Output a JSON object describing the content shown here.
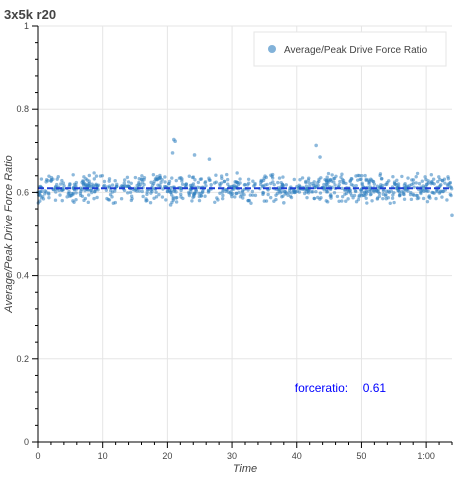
{
  "chart_data": {
    "type": "scatter",
    "title": "3x5k r20",
    "xlabel": "Time",
    "ylabel": "Average/Peak Drive Force Ratio",
    "xlim": [
      0,
      64
    ],
    "ylim": [
      0,
      1
    ],
    "x_ticks": [
      0,
      10,
      20,
      30,
      40,
      50,
      60
    ],
    "x_tick_labels": [
      "0",
      "10",
      "20",
      "30",
      "40",
      "50",
      "1:00"
    ],
    "y_ticks": [
      0,
      0.2,
      0.4,
      0.6,
      0.8,
      1
    ],
    "y_tick_labels": [
      "0",
      "0.2",
      "0.4",
      "0.6",
      "0.8",
      "1"
    ],
    "grid": true,
    "legend_position": "top-right",
    "colors": {
      "points": "#2f7fbf",
      "mean_line": "#1f3fd6",
      "annotation": "#0000ff"
    },
    "series": [
      {
        "name": "Average/Peak Drive Force Ratio",
        "mean": 0.61,
        "x_range": [
          0,
          64
        ],
        "point_count": 900,
        "y_spread": [
          0.575,
          0.645
        ],
        "outliers": [
          {
            "x": 0,
            "y": 0.6
          },
          {
            "x": 20.5,
            "y": 0.57
          },
          {
            "x": 21.0,
            "y": 0.727
          },
          {
            "x": 21.2,
            "y": 0.723
          },
          {
            "x": 20.8,
            "y": 0.695
          },
          {
            "x": 24.2,
            "y": 0.69
          },
          {
            "x": 26.5,
            "y": 0.68
          },
          {
            "x": 43.0,
            "y": 0.713
          },
          {
            "x": 43.6,
            "y": 0.685
          },
          {
            "x": 38.0,
            "y": 0.575
          },
          {
            "x": 64.0,
            "y": 0.545
          }
        ]
      }
    ],
    "reference_line": {
      "style": "dashed",
      "y": 0.61
    },
    "annotation": {
      "label": "forceratio:",
      "value": "0.61",
      "x": 40,
      "y": 0.12
    }
  }
}
